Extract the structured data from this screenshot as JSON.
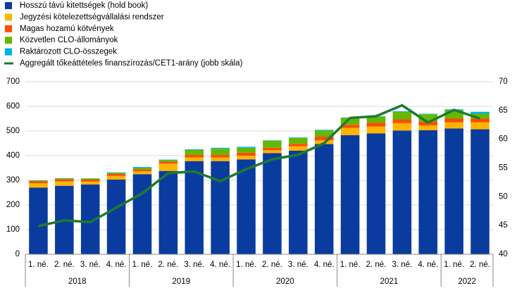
{
  "chart_data": {
    "type": "bar",
    "stacked": true,
    "categories": [
      "1. né.",
      "2. né.",
      "3. né.",
      "4. né.",
      "1. né.",
      "2. né.",
      "3. né.",
      "4. né.",
      "1. né.",
      "2. né.",
      "3. né.",
      "4. né.",
      "1. né.",
      "2. né.",
      "3. né.",
      "4. né.",
      "1. né.",
      "2. né."
    ],
    "years": [
      "2018",
      null,
      null,
      null,
      "2019",
      null,
      null,
      null,
      "2020",
      null,
      null,
      null,
      "2021",
      null,
      null,
      null,
      "2022",
      null
    ],
    "series": [
      {
        "name": "Hosszú távú kitettségek (hold book)",
        "color": "#0a3ca0",
        "values": [
          270,
          278,
          283,
          303,
          325,
          338,
          378,
          378,
          385,
          410,
          420,
          447,
          483,
          490,
          502,
          503,
          510,
          507
        ]
      },
      {
        "name": "Jegyzési kötelezettségvállalási rendszer",
        "color": "#ffb400",
        "values": [
          18,
          18,
          12,
          15,
          12,
          30,
          15,
          15,
          15,
          12,
          18,
          15,
          30,
          28,
          30,
          20,
          25,
          28
        ]
      },
      {
        "name": "Magas hozamú kötvények",
        "color": "#ff4b00",
        "values": [
          8,
          8,
          8,
          8,
          7,
          8,
          10,
          10,
          12,
          10,
          10,
          15,
          12,
          15,
          15,
          15,
          15,
          15
        ]
      },
      {
        "name": "Közvetlen CLO-állományok",
        "color": "#65b800",
        "values": [
          3,
          4,
          4,
          4,
          6,
          6,
          20,
          25,
          20,
          28,
          24,
          25,
          28,
          25,
          30,
          30,
          35,
          20
        ]
      },
      {
        "name": "Raktározott CLO-összegek",
        "color": "#00b1ea",
        "values": [
          1,
          1,
          1,
          2,
          4,
          2,
          3,
          4,
          4,
          2,
          2,
          3,
          2,
          2,
          3,
          2,
          3,
          8
        ]
      },
      {
        "name": "Aggregált tőkeáttételes finanszírozás/CET1-arány (jobb skála)",
        "color": "#1f7a2e",
        "type": "line",
        "axis": "y2",
        "values": [
          44.9,
          45.9,
          45.6,
          48.1,
          50.6,
          54.1,
          54.4,
          52.7,
          54.8,
          56.5,
          57.3,
          59.3,
          63.7,
          64.0,
          65.9,
          62.9,
          65.1,
          63.6
        ]
      }
    ],
    "ylim": [
      0,
      700
    ],
    "yticks": [
      0,
      100,
      200,
      300,
      400,
      500,
      600,
      700
    ],
    "y2lim": [
      40,
      70
    ],
    "y2ticks": [
      40,
      45,
      50,
      55,
      60,
      65,
      70
    ],
    "grid": true,
    "legend": "top-left"
  }
}
